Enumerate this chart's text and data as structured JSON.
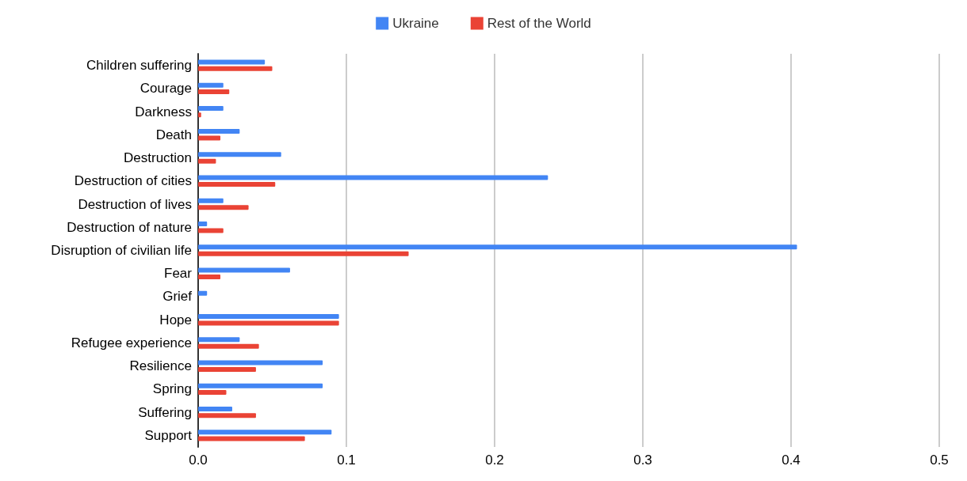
{
  "chart_data": {
    "type": "bar",
    "orientation": "horizontal",
    "categories": [
      "Children suffering",
      "Courage",
      "Darkness",
      "Death",
      "Destruction",
      "Destruction of cities",
      "Destruction of lives",
      "Destruction of nature",
      "Disruption of civilian life",
      "Fear",
      "Grief",
      "Hope",
      "Refugee experience",
      "Resilience",
      "Spring",
      "Suffering",
      "Support"
    ],
    "series": [
      {
        "name": "Ukraine",
        "color": "#4285f4",
        "values": [
          0.045,
          0.017,
          0.017,
          0.028,
          0.056,
          0.236,
          0.017,
          0.006,
          0.404,
          0.062,
          0.006,
          0.095,
          0.028,
          0.084,
          0.084,
          0.023,
          0.09
        ]
      },
      {
        "name": "Rest of the World",
        "color": "#ea4335",
        "values": [
          0.05,
          0.021,
          0.002,
          0.015,
          0.012,
          0.052,
          0.034,
          0.017,
          0.142,
          0.015,
          0,
          0.095,
          0.041,
          0.039,
          0.019,
          0.039,
          0.072
        ]
      }
    ],
    "xlim": [
      0,
      0.5
    ],
    "xticks": [
      {
        "value": 0,
        "label": "0.0"
      },
      {
        "value": 0.1,
        "label": "0.1"
      },
      {
        "value": 0.2,
        "label": "0.2"
      },
      {
        "value": 0.3,
        "label": "0.3"
      },
      {
        "value": 0.4,
        "label": "0.4"
      },
      {
        "value": 0.5,
        "label": "0.5"
      }
    ],
    "grid": "x",
    "legend": "top"
  }
}
